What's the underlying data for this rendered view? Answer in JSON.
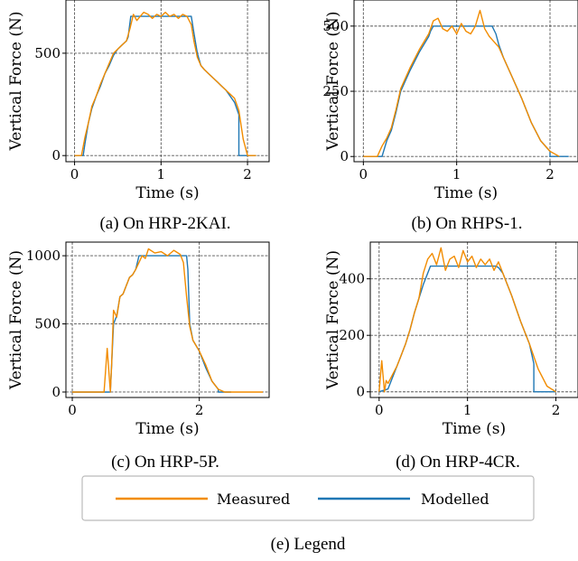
{
  "colors": {
    "measured": "#f28c00",
    "modelled": "#1f77b4",
    "grid": "#555555"
  },
  "captions": [
    "(a) On HRP-2KAI.",
    "(b) On RHPS-1.",
    "(c) On HRP-5P.",
    "(d) On HRP-4CR.",
    "(e) Legend"
  ],
  "legend": {
    "measured": "Measured",
    "modelled": "Modelled"
  },
  "chart_data": [
    {
      "type": "line",
      "xlabel": "Time (s)",
      "ylabel": "Vertical Force (N)",
      "xlim": [
        -0.1,
        2.25
      ],
      "ylim": [
        -30,
        760
      ],
      "xticks": [
        0,
        1,
        2
      ],
      "yticks": [
        0,
        500
      ],
      "grid": true,
      "series": [
        {
          "name": "Measured",
          "x": [
            0.0,
            0.08,
            0.12,
            0.16,
            0.2,
            0.25,
            0.3,
            0.35,
            0.4,
            0.45,
            0.5,
            0.55,
            0.6,
            0.64,
            0.68,
            0.72,
            0.76,
            0.8,
            0.85,
            0.9,
            0.95,
            1.0,
            1.05,
            1.1,
            1.15,
            1.2,
            1.25,
            1.3,
            1.35,
            1.38,
            1.42,
            1.46,
            1.5,
            1.55,
            1.6,
            1.65,
            1.7,
            1.75,
            1.8,
            1.85,
            1.9,
            1.95,
            2.0,
            2.1
          ],
          "y": [
            0,
            0,
            90,
            160,
            240,
            290,
            350,
            400,
            450,
            500,
            520,
            540,
            560,
            620,
            690,
            660,
            680,
            700,
            690,
            670,
            690,
            680,
            700,
            680,
            690,
            670,
            690,
            680,
            640,
            560,
            480,
            440,
            420,
            400,
            380,
            360,
            340,
            320,
            300,
            280,
            220,
            80,
            0,
            0
          ]
        },
        {
          "name": "Modelled",
          "x": [
            0.0,
            0.1,
            0.12,
            0.16,
            0.2,
            0.25,
            0.3,
            0.35,
            0.4,
            0.45,
            0.5,
            0.55,
            0.6,
            0.62,
            0.65,
            1.35,
            1.38,
            1.42,
            1.46,
            1.5,
            1.55,
            1.6,
            1.65,
            1.7,
            1.75,
            1.8,
            1.85,
            1.9,
            1.9,
            2.1
          ],
          "y": [
            0,
            0,
            60,
            160,
            230,
            290,
            340,
            400,
            440,
            490,
            520,
            540,
            560,
            580,
            680,
            680,
            600,
            500,
            440,
            420,
            400,
            380,
            360,
            340,
            320,
            290,
            260,
            200,
            0,
            0
          ]
        }
      ]
    },
    {
      "type": "line",
      "xlabel": "Time (s)",
      "ylabel": "Vertical Force (N)",
      "xlim": [
        -0.1,
        2.3
      ],
      "ylim": [
        -20,
        600
      ],
      "xticks": [
        0,
        1,
        2
      ],
      "yticks": [
        0,
        250,
        500
      ],
      "grid": true,
      "series": [
        {
          "name": "Measured",
          "x": [
            0.0,
            0.15,
            0.2,
            0.25,
            0.3,
            0.35,
            0.4,
            0.5,
            0.6,
            0.7,
            0.75,
            0.8,
            0.85,
            0.9,
            0.95,
            1.0,
            1.05,
            1.1,
            1.15,
            1.2,
            1.25,
            1.3,
            1.35,
            1.4,
            1.45,
            1.5,
            1.6,
            1.7,
            1.8,
            1.9,
            2.0,
            2.1
          ],
          "y": [
            0,
            0,
            40,
            70,
            110,
            180,
            260,
            340,
            410,
            470,
            520,
            530,
            490,
            480,
            500,
            470,
            510,
            480,
            470,
            500,
            560,
            490,
            460,
            440,
            420,
            380,
            300,
            220,
            130,
            60,
            20,
            0
          ]
        },
        {
          "name": "Modelled",
          "x": [
            0.0,
            0.2,
            0.25,
            0.3,
            0.35,
            0.4,
            0.5,
            0.6,
            0.7,
            0.72,
            0.75,
            1.38,
            1.42,
            1.45,
            1.5,
            1.6,
            1.7,
            1.8,
            1.9,
            2.0,
            2.0,
            2.2
          ],
          "y": [
            0,
            0,
            60,
            100,
            170,
            250,
            330,
            400,
            460,
            480,
            500,
            500,
            470,
            430,
            380,
            300,
            220,
            130,
            60,
            20,
            0,
            0
          ]
        }
      ]
    },
    {
      "type": "line",
      "xlabel": "Time (s)",
      "ylabel": "Vertical Force (N)",
      "xlim": [
        -0.1,
        3.1
      ],
      "ylim": [
        -40,
        1100
      ],
      "xticks": [
        0,
        2
      ],
      "yticks": [
        0,
        500,
        1000
      ],
      "grid": true,
      "series": [
        {
          "name": "Measured",
          "x": [
            0.0,
            0.5,
            0.55,
            0.6,
            0.62,
            0.65,
            0.7,
            0.75,
            0.8,
            0.85,
            0.9,
            0.95,
            1.0,
            1.05,
            1.1,
            1.15,
            1.2,
            1.3,
            1.4,
            1.5,
            1.6,
            1.7,
            1.75,
            1.8,
            1.85,
            1.9,
            2.0,
            2.1,
            2.2,
            2.3,
            2.4,
            2.5,
            3.0
          ],
          "y": [
            0,
            0,
            320,
            0,
            200,
            600,
            550,
            700,
            720,
            780,
            840,
            860,
            900,
            950,
            1000,
            980,
            1050,
            1020,
            1030,
            1000,
            1040,
            1010,
            950,
            700,
            480,
            380,
            300,
            200,
            80,
            20,
            0,
            0,
            0
          ]
        },
        {
          "name": "Modelled",
          "x": [
            0.0,
            0.6,
            0.65,
            0.7,
            0.75,
            0.8,
            0.85,
            0.9,
            0.95,
            1.0,
            1.05,
            1.8,
            1.82,
            1.85,
            1.9,
            2.0,
            2.1,
            2.2,
            2.3,
            2.3,
            2.5
          ],
          "y": [
            0,
            0,
            500,
            560,
            700,
            720,
            780,
            840,
            860,
            900,
            1000,
            1000,
            900,
            500,
            380,
            300,
            180,
            80,
            20,
            0,
            0
          ]
        }
      ]
    },
    {
      "type": "line",
      "xlabel": "Time (s)",
      "ylabel": "Vertical Force (N)",
      "xlim": [
        -0.1,
        2.25
      ],
      "ylim": [
        -20,
        530
      ],
      "xticks": [
        0,
        1,
        2
      ],
      "yticks": [
        0,
        200,
        400
      ],
      "grid": true,
      "series": [
        {
          "name": "Measured",
          "x": [
            0.0,
            0.03,
            0.06,
            0.08,
            0.1,
            0.15,
            0.2,
            0.25,
            0.3,
            0.35,
            0.4,
            0.45,
            0.5,
            0.55,
            0.6,
            0.65,
            0.7,
            0.75,
            0.8,
            0.85,
            0.9,
            0.95,
            1.0,
            1.05,
            1.1,
            1.15,
            1.2,
            1.25,
            1.3,
            1.35,
            1.4,
            1.5,
            1.6,
            1.7,
            1.8,
            1.9,
            2.0
          ],
          "y": [
            0,
            110,
            0,
            40,
            30,
            60,
            90,
            130,
            170,
            220,
            280,
            330,
            420,
            470,
            490,
            450,
            510,
            430,
            470,
            480,
            440,
            500,
            460,
            480,
            440,
            470,
            450,
            470,
            430,
            460,
            420,
            340,
            250,
            170,
            80,
            20,
            0
          ]
        },
        {
          "name": "Modelled",
          "x": [
            0.0,
            0.1,
            0.15,
            0.2,
            0.25,
            0.3,
            0.35,
            0.4,
            0.45,
            0.5,
            0.55,
            0.58,
            1.32,
            1.35,
            1.4,
            1.5,
            1.6,
            1.7,
            1.75,
            1.75,
            2.0
          ],
          "y": [
            0,
            10,
            50,
            90,
            130,
            170,
            220,
            280,
            330,
            380,
            420,
            445,
            445,
            440,
            420,
            340,
            250,
            170,
            100,
            0,
            0
          ]
        }
      ]
    }
  ]
}
